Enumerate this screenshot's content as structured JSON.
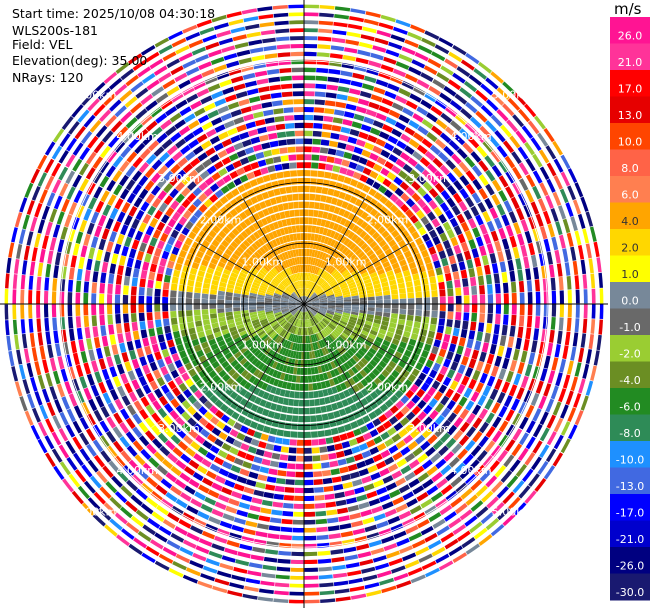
{
  "info": {
    "start_time": "Start time: 2025/10/08 04:30:18",
    "instrument": "WLS200s-181",
    "field": "Field: VEL",
    "elevation": "Elevation(deg): 35.00",
    "nrays": "NRays: 120"
  },
  "chart_data": {
    "type": "heatmap",
    "subtype": "polar PPI scan",
    "field": "VEL",
    "unit": "m/s",
    "start_time": "2025/10/08 04:30:18",
    "instrument": "WLS200s-181",
    "elevation_deg": 35.0,
    "n_rays": 120,
    "max_range_km": 5.0,
    "noise_free_range_km": 2.25,
    "range_ring_labels": [
      "1.00km",
      "2.00km",
      "3.00km",
      "4.00km",
      "5.00km"
    ],
    "colorbar": {
      "ticks": [
        "26.0",
        "21.0",
        "17.0",
        "13.0",
        "10.0",
        "8.0",
        "6.0",
        "4.0",
        "2.0",
        "1.0",
        "0.0",
        "-1.0",
        "-2.0",
        "-4.0",
        "-6.0",
        "-8.0",
        "-10.0",
        "-13.0",
        "-17.0",
        "-21.0",
        "-26.0",
        "-30.0"
      ],
      "colors": [
        "#ff1493",
        "#ff3399",
        "#ff0000",
        "#e60000",
        "#ff4500",
        "#ff6347",
        "#ff7f50",
        "#ffa500",
        "#ffd700",
        "#ffff00",
        "#778899",
        "#696969",
        "#9acd32",
        "#6b8e23",
        "#228b22",
        "#2e8b57",
        "#1e90ff",
        "#4169e1",
        "#0000ff",
        "#0000cd",
        "#000080",
        "#191970"
      ]
    },
    "sectors": [
      {
        "direction": "N to NNE (near)",
        "velocity_range": [
          4.0,
          6.0
        ]
      },
      {
        "direction": "E",
        "velocity_range": [
          1.0,
          4.0
        ]
      },
      {
        "direction": "W",
        "velocity_range": [
          2.0,
          4.0
        ]
      },
      {
        "direction": "center band",
        "velocity_range": [
          -1.0,
          1.0
        ]
      },
      {
        "direction": "S (near)",
        "velocity_range": [
          -8.0,
          -2.0
        ]
      }
    ]
  }
}
